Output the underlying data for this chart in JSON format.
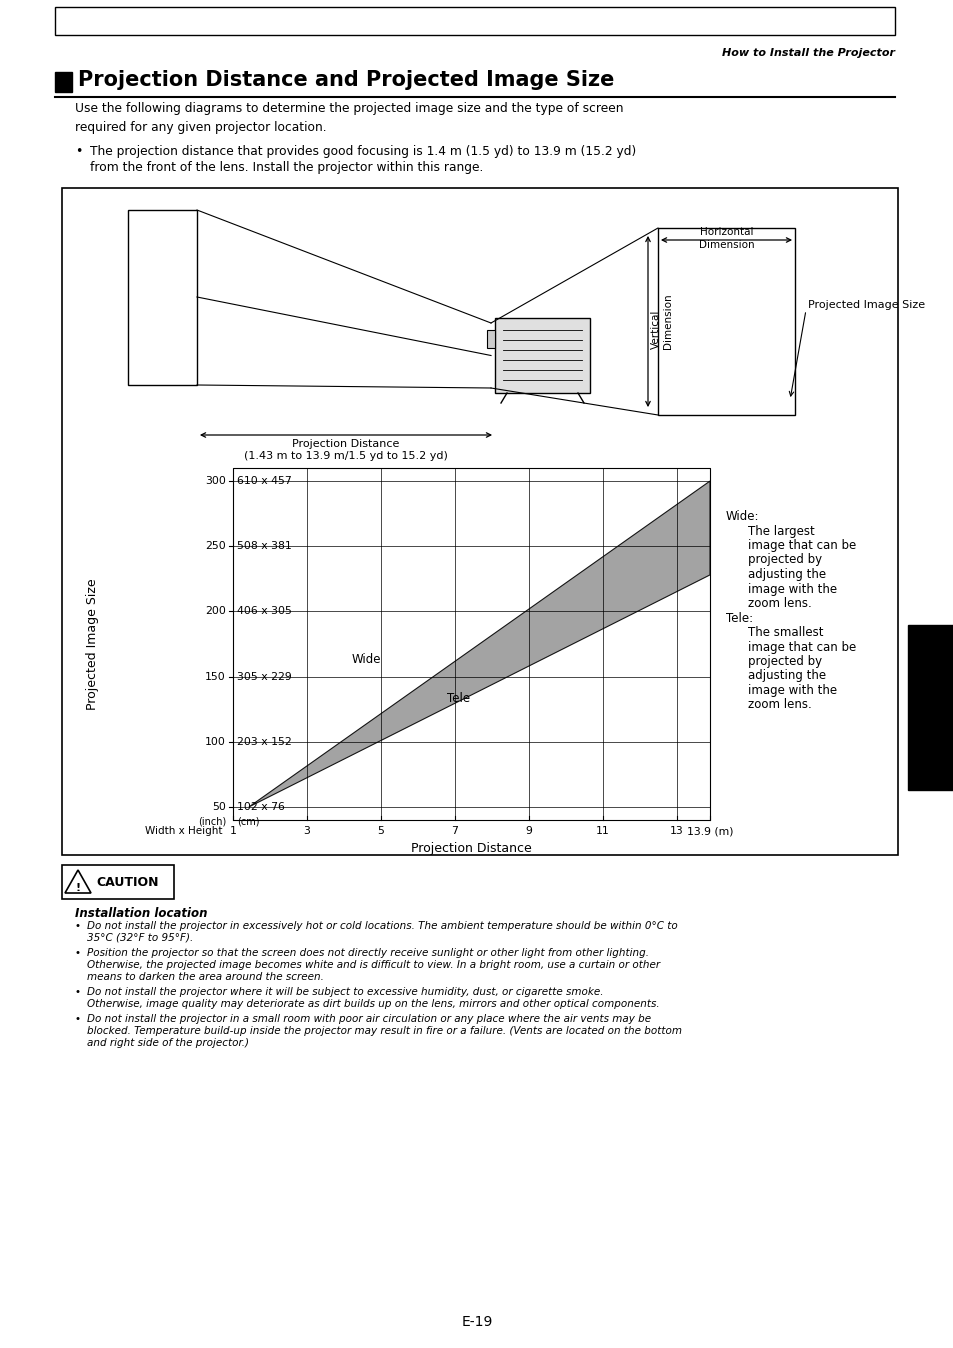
{
  "title": "Projection Distance and Projected Image Size",
  "subtitle_italic": "How to Install the Projector",
  "para1": "Use the following diagrams to determine the projected image size and the type of screen\nrequired for any given projector location.",
  "bullet1_line1": "The projection distance that provides good focusing is 1.4 m (1.5 yd) to 13.9 m (15.2 yd)",
  "bullet1_line2": "from the front of the lens. Install the projector within this range.",
  "proj_dist_label_line1": "Projection Distance",
  "proj_dist_label_line2": "(1.43 m to 13.9 m/1.5 yd to 15.2 yd)",
  "horiz_dim_label": "Horizontal\nDimension",
  "vert_dim_label": "Vertical\nDimension",
  "proj_image_label": "Projected Image Size",
  "chart_ylabel": "Projected Image Size",
  "chart_xlabel": "Projection Distance",
  "y_tick_vals": [
    50,
    100,
    150,
    200,
    250,
    300
  ],
  "x_tick_vals": [
    1,
    3,
    5,
    7,
    9,
    11,
    13,
    13.9
  ],
  "x_tick_labels": [
    "1",
    "3",
    "5",
    "7",
    "9",
    "11",
    "13",
    "13.9 (m)"
  ],
  "inch_labels": [
    "50",
    "100",
    "150",
    "200",
    "250",
    "300"
  ],
  "cm_labels": [
    "102 x 76",
    "203 x 152",
    "305 x 229",
    "406 x 305",
    "508 x 381",
    "610 x 457"
  ],
  "wide_label": "Wide",
  "tele_label": "Tele",
  "caution_title": "Installation location",
  "caution_bullets": [
    "Do not install the projector in excessively hot or cold locations. The ambient temperature should be within 0°C to\n35°C (32°F to 95°F).",
    "Position the projector so that the screen does not directly receive sunlight or other light from other lighting.\nOtherwise, the projected image becomes white and is difficult to view. In a bright room, use a curtain or other\nmeans to darken the area around the screen.",
    "Do not install the projector where it will be subject to excessive humidity, dust, or cigarette smoke.\nOtherwise, image quality may deteriorate as dirt builds up on the lens, mirrors and other optical components.",
    "Do not install the projector in a small room with poor air circulation or any place where the air vents may be\nblocked. Temperature build-up inside the projector may result in fire or a failure. (Vents are located on the bottom\nand right side of the projector.)"
  ],
  "page_num": "E-19",
  "bg_color": "#ffffff",
  "gray_fill": "#999999"
}
